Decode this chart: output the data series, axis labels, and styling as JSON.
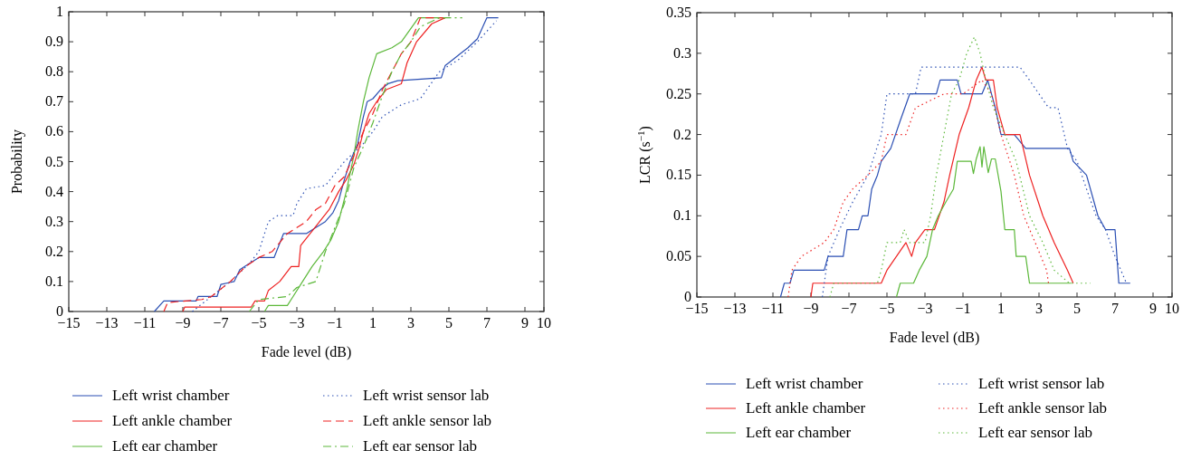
{
  "chart_data": [
    {
      "type": "line",
      "xlabel": "Fade level (dB)",
      "ylabel": "Probability",
      "legend": "bottom",
      "xlim": [
        -15,
        10
      ],
      "xticks": [
        {
          "value": -15,
          "label": "−15"
        },
        {
          "value": -13,
          "label": "−13"
        },
        {
          "value": -11,
          "label": "−11"
        },
        {
          "value": -9,
          "label": "−9"
        },
        {
          "value": -7,
          "label": "−7"
        },
        {
          "value": -5,
          "label": "−5"
        },
        {
          "value": -3,
          "label": "−3"
        },
        {
          "value": -1,
          "label": "−1"
        },
        1,
        3,
        5,
        7,
        9,
        10
      ],
      "ylim": [
        0,
        1
      ],
      "yticks": [
        0,
        0.1,
        0.2,
        0.3,
        0.4,
        0.5,
        0.6,
        0.7,
        0.8,
        0.9,
        1
      ],
      "series": [
        {
          "name": "Left wrist chamber",
          "color": "#2b4fb3",
          "line_style": "solid",
          "x": [
            -10.5,
            -10,
            -8.3,
            -8.2,
            -7.2,
            -7,
            -6.3,
            -6,
            -5.5,
            -5,
            -4.2,
            -3.7,
            -2.5,
            -2,
            -1.5,
            -1.1,
            -0.8,
            -0.5,
            -0.2,
            0.2,
            0.5,
            0.7,
            1,
            1.4,
            1.8,
            2.3,
            4.6,
            4.8,
            5.2,
            5.6,
            6,
            6.5,
            7,
            7.6
          ],
          "values": [
            0,
            0.035,
            0.035,
            0.05,
            0.05,
            0.09,
            0.1,
            0.14,
            0.16,
            0.18,
            0.18,
            0.26,
            0.26,
            0.28,
            0.3,
            0.33,
            0.37,
            0.44,
            0.5,
            0.56,
            0.65,
            0.7,
            0.71,
            0.74,
            0.76,
            0.77,
            0.78,
            0.82,
            0.84,
            0.86,
            0.88,
            0.91,
            0.98,
            0.98
          ]
        },
        {
          "name": "Left ankle chamber",
          "color": "#ee2222",
          "line_style": "solid",
          "x": [
            -9,
            -8.9,
            -5.4,
            -5.2,
            -4.7,
            -4.5,
            -3.9,
            -3.3,
            -2.9,
            -2.8,
            -2.3,
            -1.8,
            -1.3,
            -0.8,
            -0.4,
            0,
            0.3,
            0.5,
            0.8,
            1.2,
            1.7,
            2.5,
            2.8,
            3.3,
            4.1,
            4.8
          ],
          "values": [
            0,
            0.015,
            0.015,
            0.035,
            0.035,
            0.07,
            0.1,
            0.15,
            0.15,
            0.22,
            0.26,
            0.3,
            0.34,
            0.4,
            0.44,
            0.49,
            0.55,
            0.6,
            0.66,
            0.7,
            0.74,
            0.76,
            0.83,
            0.9,
            0.96,
            0.98
          ]
        },
        {
          "name": "Left ear chamber",
          "color": "#5cb83a",
          "line_style": "solid",
          "x": [
            -4.7,
            -4.5,
            -3.5,
            -3.2,
            -2.7,
            -2.2,
            -1.6,
            -1.2,
            -0.8,
            -0.4,
            0,
            0.2,
            0.5,
            0.8,
            1.2,
            2,
            2.5,
            3.4,
            4.8
          ],
          "values": [
            0,
            0.02,
            0.02,
            0.05,
            0.1,
            0.15,
            0.2,
            0.24,
            0.3,
            0.4,
            0.52,
            0.6,
            0.7,
            0.78,
            0.86,
            0.88,
            0.9,
            0.98,
            0.98
          ]
        },
        {
          "name": "Left wrist sensor lab",
          "color": "#2b4fb3",
          "line_style": "dotted",
          "x": [
            -8.5,
            -7.5,
            -6.5,
            -5.5,
            -5,
            -4.5,
            -4,
            -3.2,
            -3,
            -2.5,
            -1.5,
            -1,
            -0.5,
            0,
            0.5,
            1,
            1.5,
            2.5,
            3.5,
            4.5,
            5.5,
            6.5,
            7.5
          ],
          "values": [
            0,
            0.05,
            0.1,
            0.16,
            0.2,
            0.3,
            0.32,
            0.32,
            0.36,
            0.41,
            0.42,
            0.46,
            0.5,
            0.53,
            0.56,
            0.6,
            0.65,
            0.69,
            0.71,
            0.8,
            0.84,
            0.9,
            0.97
          ]
        },
        {
          "name": "Left ankle sensor lab",
          "color": "#ee2222",
          "line_style": "dashed",
          "x": [
            -10,
            -9.8,
            -8,
            -7.5,
            -6.5,
            -5.7,
            -5,
            -4.3,
            -3.5,
            -2.5,
            -2,
            -1.5,
            -1,
            -0.5,
            0,
            0.5,
            1,
            1.5,
            2,
            2.5,
            3,
            3.5,
            4.8
          ],
          "values": [
            0,
            0.03,
            0.04,
            0.05,
            0.1,
            0.15,
            0.18,
            0.2,
            0.26,
            0.3,
            0.34,
            0.36,
            0.42,
            0.45,
            0.52,
            0.6,
            0.66,
            0.74,
            0.8,
            0.86,
            0.9,
            0.98,
            0.98
          ]
        },
        {
          "name": "Left ear sensor lab",
          "color": "#5cb83a",
          "line_style": "dashdot",
          "x": [
            -5.5,
            -5,
            -3.5,
            -3,
            -2,
            -1.5,
            -1,
            -0.5,
            0,
            0.5,
            1,
            1.5,
            2,
            2.5,
            3,
            3.5,
            4.5,
            5.7
          ],
          "values": [
            0,
            0.04,
            0.05,
            0.08,
            0.1,
            0.2,
            0.28,
            0.36,
            0.48,
            0.55,
            0.63,
            0.72,
            0.8,
            0.86,
            0.9,
            0.95,
            0.98,
            0.98
          ]
        }
      ]
    },
    {
      "type": "line",
      "xlabel": "Fade level (dB)",
      "ylabel": "LCR (s$^{−1}$)",
      "legend": "bottom",
      "xlim": [
        -15,
        10
      ],
      "xticks": [
        {
          "value": -15,
          "label": "−15"
        },
        {
          "value": -13,
          "label": "−13"
        },
        {
          "value": -11,
          "label": "−11"
        },
        {
          "value": -9,
          "label": "−9"
        },
        {
          "value": -7,
          "label": "−7"
        },
        {
          "value": -5,
          "label": "−5"
        },
        {
          "value": -3,
          "label": "−3"
        },
        {
          "value": -1,
          "label": "−1"
        },
        1,
        3,
        5,
        7,
        9,
        10
      ],
      "ylim": [
        0,
        0.35
      ],
      "yticks": [
        0,
        0.05,
        0.1,
        0.15,
        0.2,
        0.25,
        0.3,
        0.35
      ],
      "series": [
        {
          "name": "Left wrist chamber",
          "color": "#2b4fb3",
          "line_style": "solid",
          "x": [
            -10.6,
            -10.4,
            -10.1,
            -9.9,
            -8.3,
            -8.1,
            -7.3,
            -7.1,
            -6.5,
            -6.3,
            -6,
            -5.8,
            -5.5,
            -5.3,
            -4.8,
            -4.3,
            -3.8,
            -2.4,
            -2.2,
            -1.3,
            -1.1,
            0,
            0.3,
            0.5,
            0.7,
            1,
            1.7,
            2.3,
            4.6,
            4.8,
            5.5,
            6.1,
            6.5,
            7,
            7.2,
            7.8
          ],
          "values": [
            0,
            0.017,
            0.017,
            0.033,
            0.033,
            0.05,
            0.05,
            0.083,
            0.083,
            0.1,
            0.1,
            0.133,
            0.15,
            0.167,
            0.183,
            0.217,
            0.25,
            0.25,
            0.267,
            0.267,
            0.25,
            0.25,
            0.267,
            0.25,
            0.233,
            0.2,
            0.2,
            0.183,
            0.183,
            0.167,
            0.15,
            0.1,
            0.083,
            0.083,
            0.017,
            0.017
          ]
        },
        {
          "name": "Left ankle chamber",
          "color": "#ee2222",
          "line_style": "solid",
          "x": [
            -9,
            -8.9,
            -5.3,
            -5,
            -4.5,
            -4,
            -3.7,
            -3.5,
            -3,
            -2.5,
            -2,
            -1.7,
            -1.2,
            -0.7,
            -0.3,
            0,
            0.2,
            0.6,
            0.8,
            1.2,
            2,
            2.5,
            3.2,
            3.8,
            4.5,
            4.8
          ],
          "values": [
            0,
            0.017,
            0.017,
            0.033,
            0.05,
            0.067,
            0.05,
            0.067,
            0.083,
            0.083,
            0.117,
            0.15,
            0.2,
            0.233,
            0.267,
            0.283,
            0.267,
            0.267,
            0.233,
            0.2,
            0.2,
            0.15,
            0.1,
            0.067,
            0.033,
            0.017
          ]
        },
        {
          "name": "Left ear chamber",
          "color": "#5cb83a",
          "line_style": "solid",
          "x": [
            -4.5,
            -4.3,
            -3.6,
            -3.3,
            -2.9,
            -2.6,
            -2.3,
            -1.9,
            -1.5,
            -1.3,
            -0.57,
            -0.45,
            -0.3,
            -0.1,
            0,
            0.1,
            0.33,
            0.5,
            0.7,
            1,
            1.2,
            1.7,
            1.8,
            2.3,
            2.5,
            4.7
          ],
          "values": [
            0,
            0.017,
            0.017,
            0.033,
            0.05,
            0.083,
            0.1,
            0.117,
            0.133,
            0.167,
            0.167,
            0.152,
            0.17,
            0.185,
            0.16,
            0.185,
            0.153,
            0.17,
            0.17,
            0.13,
            0.083,
            0.083,
            0.05,
            0.05,
            0.017,
            0.017
          ]
        },
        {
          "name": "Left wrist sensor lab",
          "color": "#2b4fb3",
          "line_style": "dotted",
          "x": [
            -8.4,
            -8.1,
            -7.5,
            -6.8,
            -6,
            -5.3,
            -5,
            -3.5,
            -3.2,
            2,
            2.5,
            3.5,
            4,
            4.5,
            5,
            5.5,
            6,
            6.5,
            7,
            7.6
          ],
          "values": [
            0,
            0.05,
            0.083,
            0.117,
            0.15,
            0.2,
            0.25,
            0.25,
            0.283,
            0.283,
            0.267,
            0.233,
            0.233,
            0.183,
            0.167,
            0.133,
            0.1,
            0.083,
            0.05,
            0.017
          ]
        },
        {
          "name": "Left ankle sensor lab",
          "color": "#ee2222",
          "line_style": "dotted",
          "x": [
            -10.2,
            -10,
            -9.5,
            -8.3,
            -7.8,
            -7.3,
            -6.8,
            -6,
            -5.3,
            -5,
            -4,
            -3.5,
            -2,
            -1,
            0,
            0.5,
            1,
            1.7,
            2.2,
            2.8,
            3.4,
            3.5
          ],
          "values": [
            0,
            0.033,
            0.05,
            0.067,
            0.083,
            0.117,
            0.133,
            0.15,
            0.167,
            0.2,
            0.2,
            0.233,
            0.25,
            0.25,
            0.267,
            0.25,
            0.2,
            0.15,
            0.1,
            0.067,
            0.033,
            0.017
          ]
        },
        {
          "name": "Left ear sensor lab",
          "color": "#5cb83a",
          "line_style": "dotted",
          "x": [
            -8,
            -7.8,
            -5.5,
            -5.3,
            -5,
            -4.3,
            -4.1,
            -3.8,
            -3,
            -2.7,
            -2.4,
            -2,
            -1.6,
            -1.2,
            -0.8,
            -0.4,
            -0.1,
            0.2,
            0.6,
            1.2,
            1.8,
            2.5,
            3.2,
            3.8,
            4.6,
            5.7
          ],
          "values": [
            0,
            0.017,
            0.017,
            0.033,
            0.067,
            0.067,
            0.083,
            0.067,
            0.067,
            0.1,
            0.15,
            0.2,
            0.25,
            0.267,
            0.3,
            0.32,
            0.3,
            0.267,
            0.233,
            0.2,
            0.167,
            0.1,
            0.067,
            0.033,
            0.017,
            0.017
          ]
        }
      ]
    }
  ]
}
